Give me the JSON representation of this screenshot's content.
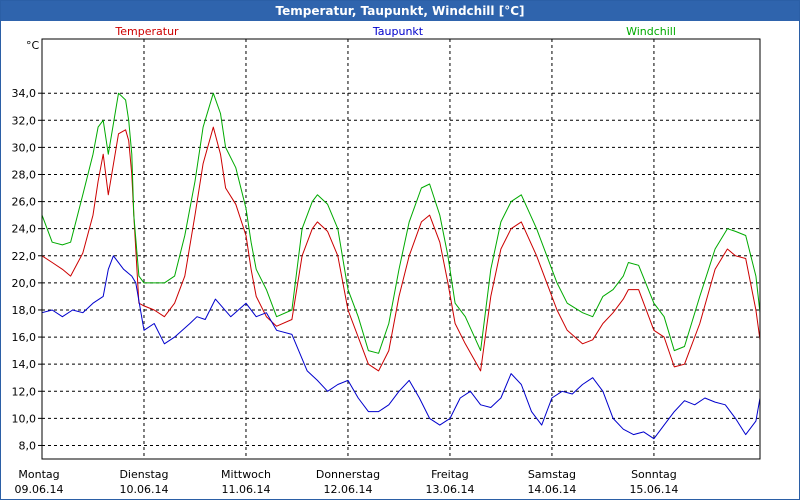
{
  "window": {
    "title": "Temperatur, Taupunkt, Windchill [°C]"
  },
  "chart_data": {
    "type": "line",
    "title": "Temperatur, Taupunkt, Windchill [°C]",
    "ylabel": "°C",
    "ylim": [
      7,
      38
    ],
    "xlim": [
      0,
      7.04
    ],
    "y_ticks": [
      "8,0",
      "10,0",
      "12,0",
      "14,0",
      "16,0",
      "18,0",
      "20,0",
      "22,0",
      "24,0",
      "26,0",
      "28,0",
      "30,0",
      "32,0",
      "34,0"
    ],
    "y_tick_values": [
      8,
      10,
      12,
      14,
      16,
      18,
      20,
      22,
      24,
      26,
      28,
      30,
      32,
      34
    ],
    "days": [
      {
        "weekday": "Montag",
        "date": "09.06.14"
      },
      {
        "weekday": "Dienstag",
        "date": "10.06.14"
      },
      {
        "weekday": "Mittwoch",
        "date": "11.06.14"
      },
      {
        "weekday": "Donnerstag",
        "date": "12.06.14"
      },
      {
        "weekday": "Freitag",
        "date": "13.06.14"
      },
      {
        "weekday": "Samstag",
        "date": "14.06.14"
      },
      {
        "weekday": "Sonntag",
        "date": "15.06.14"
      }
    ],
    "grid": true,
    "series": [
      {
        "name": "Temperatur",
        "color": "#cc0000",
        "x": [
          0,
          0.1,
          0.2,
          0.28,
          0.4,
          0.5,
          0.55,
          0.6,
          0.65,
          0.75,
          0.82,
          0.85,
          0.88,
          0.9,
          0.95,
          1,
          1.1,
          1.2,
          1.3,
          1.4,
          1.5,
          1.58,
          1.68,
          1.75,
          1.8,
          1.9,
          2,
          2.05,
          2.1,
          2.2,
          2.3,
          2.45,
          2.55,
          2.65,
          2.7,
          2.8,
          2.9,
          3,
          3.1,
          3.2,
          3.3,
          3.4,
          3.5,
          3.6,
          3.72,
          3.8,
          3.9,
          3.98,
          4.05,
          4.15,
          4.3,
          4.4,
          4.5,
          4.6,
          4.7,
          4.85,
          4.95,
          5.05,
          5.15,
          5.3,
          5.4,
          5.5,
          5.6,
          5.7,
          5.75,
          5.85,
          6,
          6.1,
          6.2,
          6.3,
          6.45,
          6.6,
          6.72,
          6.8,
          6.9,
          7,
          7.04
        ],
        "values": [
          22,
          21.5,
          21,
          20.5,
          22.2,
          25,
          27.5,
          29.5,
          26.5,
          31,
          31.3,
          30.5,
          28,
          25,
          18.5,
          18.3,
          18,
          17.5,
          18.5,
          20.5,
          25,
          28.8,
          31.5,
          29.5,
          27,
          25.8,
          23.5,
          21,
          19,
          17.5,
          16.8,
          17.3,
          22,
          24,
          24.5,
          23.8,
          22,
          18,
          16,
          14,
          13.5,
          15,
          19,
          22,
          24.5,
          25,
          23,
          20,
          17,
          15.5,
          13.5,
          19,
          22.5,
          24,
          24.5,
          22,
          20,
          18,
          16.5,
          15.5,
          15.8,
          17,
          17.8,
          18.8,
          19.5,
          19.5,
          16.5,
          16,
          13.8,
          14,
          17,
          21,
          22.5,
          22,
          21.8,
          18,
          15.8
        ]
      },
      {
        "name": "Taupunkt",
        "color": "#0000cc",
        "x": [
          0,
          0.1,
          0.2,
          0.3,
          0.4,
          0.5,
          0.6,
          0.65,
          0.7,
          0.8,
          0.88,
          0.92,
          1,
          1.1,
          1.2,
          1.3,
          1.45,
          1.52,
          1.6,
          1.7,
          1.85,
          2,
          2.1,
          2.2,
          2.3,
          2.45,
          2.6,
          2.7,
          2.8,
          2.9,
          3,
          3.1,
          3.2,
          3.3,
          3.4,
          3.5,
          3.6,
          3.7,
          3.8,
          3.9,
          4,
          4.1,
          4.2,
          4.3,
          4.4,
          4.5,
          4.6,
          4.7,
          4.8,
          4.9,
          5,
          5.1,
          5.2,
          5.3,
          5.4,
          5.5,
          5.6,
          5.7,
          5.8,
          5.9,
          6,
          6.1,
          6.2,
          6.3,
          6.4,
          6.5,
          6.6,
          6.7,
          6.8,
          6.9,
          7,
          7.04
        ],
        "values": [
          17.8,
          18,
          17.5,
          18,
          17.8,
          18.5,
          19,
          21,
          22,
          21,
          20.5,
          20,
          16.5,
          17,
          15.5,
          16,
          17,
          17.5,
          17.3,
          18.8,
          17.5,
          18.5,
          17.5,
          17.8,
          16.5,
          16.2,
          13.5,
          12.8,
          12,
          12.5,
          12.8,
          11.5,
          10.5,
          10.5,
          11,
          12,
          12.8,
          11.5,
          10,
          9.5,
          10,
          11.5,
          12,
          11,
          10.8,
          11.5,
          13.3,
          12.5,
          10.5,
          9.5,
          11.5,
          12,
          11.8,
          12.5,
          13,
          12,
          10,
          9.2,
          8.8,
          9,
          8.5,
          9.5,
          10.5,
          11.3,
          11,
          11.5,
          11.2,
          11,
          10,
          8.8,
          9.8,
          11.5
        ]
      },
      {
        "name": "Windchill",
        "color": "#00aa00",
        "x": [
          0,
          0.1,
          0.2,
          0.28,
          0.4,
          0.5,
          0.55,
          0.6,
          0.65,
          0.75,
          0.82,
          0.85,
          0.88,
          0.9,
          0.95,
          1,
          1.1,
          1.2,
          1.3,
          1.4,
          1.5,
          1.58,
          1.68,
          1.75,
          1.8,
          1.9,
          2,
          2.05,
          2.1,
          2.2,
          2.3,
          2.45,
          2.55,
          2.65,
          2.7,
          2.8,
          2.9,
          3,
          3.1,
          3.2,
          3.3,
          3.4,
          3.5,
          3.6,
          3.72,
          3.8,
          3.9,
          3.98,
          4.05,
          4.15,
          4.3,
          4.4,
          4.5,
          4.6,
          4.7,
          4.85,
          4.95,
          5.05,
          5.15,
          5.3,
          5.4,
          5.5,
          5.6,
          5.7,
          5.75,
          5.85,
          6,
          6.1,
          6.2,
          6.3,
          6.45,
          6.6,
          6.72,
          6.8,
          6.9,
          7,
          7.04
        ],
        "values": [
          25,
          23,
          22.8,
          23,
          26.5,
          29.5,
          31.5,
          32,
          29.5,
          34,
          33.5,
          32,
          29.5,
          25,
          20.5,
          20,
          20,
          20,
          20.5,
          23.5,
          27.5,
          31.5,
          34,
          32.5,
          30,
          28.5,
          25.5,
          23,
          21,
          19.5,
          17.5,
          18,
          24,
          26,
          26.5,
          25.8,
          24,
          19.5,
          17.5,
          15,
          14.8,
          17,
          21,
          24.5,
          27,
          27.3,
          25,
          22,
          18.5,
          17.5,
          15,
          21,
          24.5,
          26,
          26.5,
          24,
          22,
          20,
          18.5,
          17.8,
          17.5,
          19,
          19.5,
          20.5,
          21.5,
          21.3,
          18.5,
          17.5,
          15,
          15.3,
          19,
          22.5,
          24,
          23.8,
          23.5,
          20.5,
          17.8
        ]
      }
    ]
  }
}
